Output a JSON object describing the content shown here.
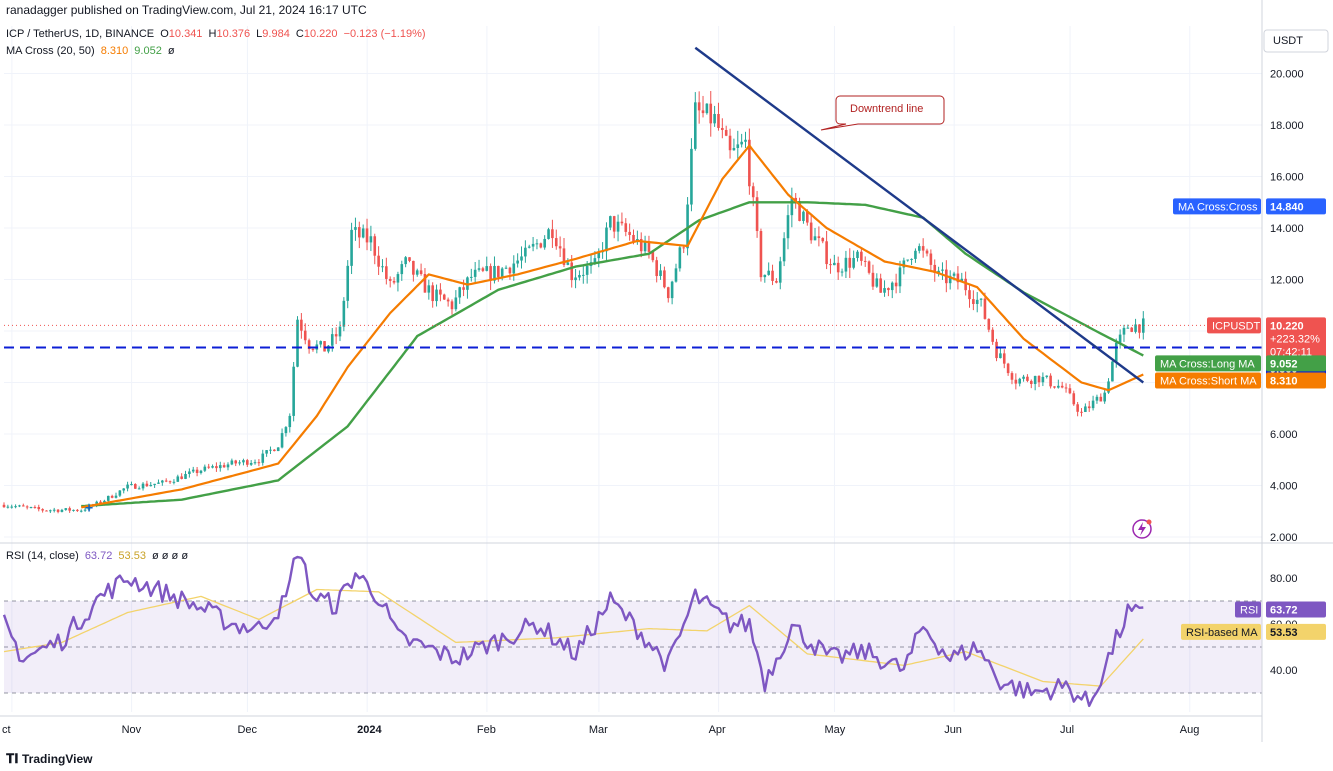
{
  "header": {
    "publisher": "ranadagger published on TradingView.com, Jul 21, 2024 16:17 UTC"
  },
  "legend": {
    "symbol": "ICP / TetherUS, 1D, BINANCE",
    "o_label": "O",
    "o_value": "10.341",
    "h_label": "H",
    "h_value": "10.376",
    "l_label": "L",
    "l_value": "9.984",
    "c_label": "C",
    "c_value": "10.220",
    "change": "−0.123 (−1.19%)",
    "ma_label": "MA Cross (20, 50)",
    "ma_short_value": "8.310",
    "ma_long_value": "9.052",
    "ma_symbol": "ø"
  },
  "rsi_legend": {
    "label": "RSI (14, close)",
    "rsi_value": "63.72",
    "ma_value": "53.53",
    "extras": "ø ø ø ø"
  },
  "footer": {
    "brand": "TradingView"
  },
  "colors": {
    "up": "#26a69a",
    "down": "#ef5350",
    "ma_short": "#f57c00",
    "ma_long": "#43a047",
    "trend": "#1e3a8a",
    "support": "#0d1fd6",
    "rsi": "#7e57c2",
    "rsi_ma": "#f3d36b"
  },
  "chart_data": {
    "type": "candlestick",
    "price_axis": {
      "currency": "USDT",
      "ticks": [
        "20.000",
        "18.000",
        "16.000",
        "14.000",
        "12.000",
        "10.000",
        "8.000",
        "6.000",
        "4.000",
        "2.000"
      ],
      "range": [
        2,
        21.6
      ]
    },
    "rsi_axis": {
      "ticks": [
        "80.00",
        "60.00",
        "40.00"
      ],
      "range": [
        24,
        94
      ],
      "upper_band": 70,
      "lower_band": 30,
      "middle": 50
    },
    "time_axis": {
      "labels": [
        "ct",
        "Nov",
        "Dec",
        "2024",
        "Feb",
        "Mar",
        "Apr",
        "May",
        "Jun",
        "Jul",
        "Aug"
      ],
      "bold": [
        "2024"
      ]
    },
    "annotations": {
      "downtrend_label": "Downtrend line",
      "support_level": 9.36,
      "trendline": {
        "from": [
          "2024-03-27",
          21.0
        ],
        "to": [
          "2024-07-21",
          8.0
        ]
      }
    },
    "price_labels": {
      "cross": {
        "label": "MA Cross:Cross",
        "value": "14.840",
        "price": 14.84
      },
      "last": {
        "label": "ICPUSDT",
        "value": "10.220",
        "pct": "+223.32%",
        "countdown": "07:42:11",
        "price": 10.22
      },
      "support": {
        "value": "9.360",
        "price": 9.36
      },
      "long_ma": {
        "label": "MA Cross:Long MA",
        "value": "9.052",
        "price": 9.052
      },
      "short_ma": {
        "label": "MA Cross:Short MA",
        "value": "8.310",
        "price": 8.31
      }
    },
    "rsi_labels": {
      "rsi": {
        "label": "RSI",
        "value": "63.72",
        "level": 63.72
      },
      "rsi_ma": {
        "label": "RSI-based MA",
        "value": "53.53",
        "level": 53.53
      }
    },
    "start_date": "2023-09-30",
    "end_date": "2024-07-21",
    "close_anchors": [
      [
        "2023-09-30",
        3.25
      ],
      [
        "2023-10-10",
        3.05
      ],
      [
        "2023-10-20",
        3.05
      ],
      [
        "2023-10-25",
        3.35
      ],
      [
        "2023-11-01",
        3.95
      ],
      [
        "2023-11-10",
        4.1
      ],
      [
        "2023-11-20",
        4.6
      ],
      [
        "2023-11-28",
        4.85
      ],
      [
        "2023-12-05",
        5.0
      ],
      [
        "2023-12-10",
        5.6
      ],
      [
        "2023-12-13",
        6.8
      ],
      [
        "2023-12-15",
        10.5
      ],
      [
        "2023-12-18",
        9.5
      ],
      [
        "2023-12-22",
        9.3
      ],
      [
        "2023-12-26",
        10.0
      ],
      [
        "2023-12-29",
        13.8
      ],
      [
        "2024-01-03",
        13.5
      ],
      [
        "2024-01-08",
        11.7
      ],
      [
        "2024-01-12",
        12.6
      ],
      [
        "2024-01-19",
        11.4
      ],
      [
        "2024-01-24",
        11.0
      ],
      [
        "2024-01-29",
        12.1
      ],
      [
        "2024-02-05",
        12.3
      ],
      [
        "2024-02-12",
        12.9
      ],
      [
        "2024-02-19",
        14.0
      ],
      [
        "2024-02-24",
        12.2
      ],
      [
        "2024-03-01",
        12.5
      ],
      [
        "2024-03-05",
        14.2
      ],
      [
        "2024-03-10",
        13.7
      ],
      [
        "2024-03-15",
        13.0
      ],
      [
        "2024-03-20",
        11.5
      ],
      [
        "2024-03-24",
        13.5
      ],
      [
        "2024-03-27",
        18.5
      ],
      [
        "2024-04-01",
        18.2
      ],
      [
        "2024-04-05",
        16.8
      ],
      [
        "2024-04-09",
        17.3
      ],
      [
        "2024-04-13",
        12.3
      ],
      [
        "2024-04-17",
        12.0
      ],
      [
        "2024-04-21",
        15.2
      ],
      [
        "2024-04-26",
        13.8
      ],
      [
        "2024-05-02",
        12.5
      ],
      [
        "2024-05-08",
        12.8
      ],
      [
        "2024-05-14",
        11.5
      ],
      [
        "2024-05-19",
        12.2
      ],
      [
        "2024-05-23",
        13.4
      ],
      [
        "2024-05-29",
        12.1
      ],
      [
        "2024-06-04",
        11.9
      ],
      [
        "2024-06-09",
        11.0
      ],
      [
        "2024-06-13",
        9.2
      ],
      [
        "2024-06-18",
        8.1
      ],
      [
        "2024-06-24",
        8.2
      ],
      [
        "2024-06-30",
        7.8
      ],
      [
        "2024-07-05",
        6.8
      ],
      [
        "2024-07-08",
        7.2
      ],
      [
        "2024-07-11",
        7.6
      ],
      [
        "2024-07-14",
        9.4
      ],
      [
        "2024-07-17",
        10.2
      ],
      [
        "2024-07-21",
        10.22
      ]
    ],
    "ma_short_anchors": [
      [
        "2023-10-20",
        3.15
      ],
      [
        "2023-11-15",
        3.85
      ],
      [
        "2023-12-10",
        4.85
      ],
      [
        "2023-12-20",
        6.7
      ],
      [
        "2023-12-28",
        8.6
      ],
      [
        "2024-01-08",
        10.7
      ],
      [
        "2024-01-18",
        12.2
      ],
      [
        "2024-01-28",
        11.8
      ],
      [
        "2024-02-10",
        12.2
      ],
      [
        "2024-02-25",
        12.8
      ],
      [
        "2024-03-12",
        13.5
      ],
      [
        "2024-03-25",
        13.3
      ],
      [
        "2024-04-03",
        15.9
      ],
      [
        "2024-04-10",
        17.2
      ],
      [
        "2024-04-20",
        15.3
      ],
      [
        "2024-04-30",
        14.0
      ],
      [
        "2024-05-15",
        12.7
      ],
      [
        "2024-05-28",
        12.3
      ],
      [
        "2024-06-08",
        11.7
      ],
      [
        "2024-06-20",
        9.7
      ],
      [
        "2024-07-05",
        8.0
      ],
      [
        "2024-07-12",
        7.7
      ],
      [
        "2024-07-21",
        8.31
      ]
    ],
    "ma_long_anchors": [
      [
        "2023-10-20",
        3.2
      ],
      [
        "2023-11-15",
        3.45
      ],
      [
        "2023-12-10",
        4.2
      ],
      [
        "2023-12-28",
        6.3
      ],
      [
        "2024-01-15",
        9.8
      ],
      [
        "2024-02-05",
        11.6
      ],
      [
        "2024-02-25",
        12.5
      ],
      [
        "2024-03-15",
        13.0
      ],
      [
        "2024-03-28",
        14.3
      ],
      [
        "2024-04-10",
        15.0
      ],
      [
        "2024-04-25",
        15.0
      ],
      [
        "2024-05-10",
        14.9
      ],
      [
        "2024-05-25",
        14.4
      ],
      [
        "2024-06-05",
        13.0
      ],
      [
        "2024-06-20",
        11.5
      ],
      [
        "2024-07-10",
        9.9
      ],
      [
        "2024-07-21",
        9.05
      ]
    ],
    "rsi_anchors": [
      [
        "2023-09-30",
        60
      ],
      [
        "2023-10-05",
        45
      ],
      [
        "2023-10-15",
        53
      ],
      [
        "2023-10-25",
        72
      ],
      [
        "2023-11-01",
        80
      ],
      [
        "2023-11-10",
        74
      ],
      [
        "2023-11-20",
        67
      ],
      [
        "2023-11-28",
        60
      ],
      [
        "2023-12-05",
        58
      ],
      [
        "2023-12-12",
        70
      ],
      [
        "2023-12-15",
        93
      ],
      [
        "2023-12-19",
        72
      ],
      [
        "2023-12-25",
        68
      ],
      [
        "2023-12-30",
        82
      ],
      [
        "2024-01-05",
        72
      ],
      [
        "2024-01-10",
        54
      ],
      [
        "2024-01-20",
        48
      ],
      [
        "2024-01-25",
        45
      ],
      [
        "2024-02-05",
        53
      ],
      [
        "2024-02-15",
        60
      ],
      [
        "2024-02-25",
        47
      ],
      [
        "2024-03-05",
        70
      ],
      [
        "2024-03-12",
        58
      ],
      [
        "2024-03-20",
        42
      ],
      [
        "2024-03-27",
        72
      ],
      [
        "2024-04-05",
        60
      ],
      [
        "2024-04-10",
        60
      ],
      [
        "2024-04-14",
        35
      ],
      [
        "2024-04-21",
        59
      ],
      [
        "2024-05-01",
        45
      ],
      [
        "2024-05-10",
        48
      ],
      [
        "2024-05-20",
        40
      ],
      [
        "2024-05-25",
        59
      ],
      [
        "2024-06-01",
        45
      ],
      [
        "2024-06-08",
        50
      ],
      [
        "2024-06-14",
        35
      ],
      [
        "2024-06-22",
        30
      ],
      [
        "2024-07-01",
        33
      ],
      [
        "2024-07-07",
        25
      ],
      [
        "2024-07-12",
        45
      ],
      [
        "2024-07-17",
        65
      ],
      [
        "2024-07-21",
        63.72
      ]
    ],
    "rsi_ma_anchors": [
      [
        "2023-09-30",
        48
      ],
      [
        "2023-10-15",
        52
      ],
      [
        "2023-11-01",
        65
      ],
      [
        "2023-11-20",
        72
      ],
      [
        "2023-12-05",
        62
      ],
      [
        "2023-12-20",
        75
      ],
      [
        "2024-01-05",
        74
      ],
      [
        "2024-01-25",
        52
      ],
      [
        "2024-02-20",
        54
      ],
      [
        "2024-03-15",
        58
      ],
      [
        "2024-03-30",
        57
      ],
      [
        "2024-04-10",
        68
      ],
      [
        "2024-04-25",
        47
      ],
      [
        "2024-05-20",
        42
      ],
      [
        "2024-06-05",
        48
      ],
      [
        "2024-06-25",
        35
      ],
      [
        "2024-07-10",
        33
      ],
      [
        "2024-07-21",
        53.53
      ]
    ]
  }
}
